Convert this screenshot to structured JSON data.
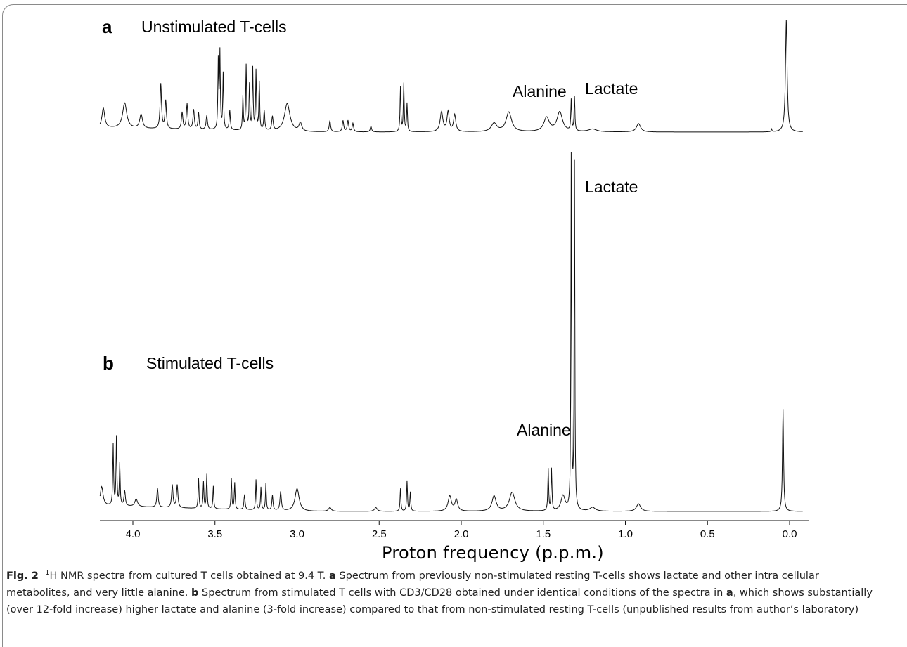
{
  "chart_data": [
    {
      "type": "line",
      "panel": "a",
      "title": "Unstimulated T-cells",
      "xlabel": "Proton frequency (p.p.m.)",
      "xlim": [
        4.2,
        -0.08
      ],
      "x_reversed": true,
      "y_units": "relative intensity (arbitrary)",
      "annotations": [
        {
          "text": "Alanine",
          "x": 1.47
        },
        {
          "text": "Lactate",
          "x": 1.33
        }
      ],
      "peaks": [
        [
          4.18,
          0.07,
          0.01
        ],
        [
          4.05,
          0.09,
          0.015
        ],
        [
          3.95,
          0.05,
          0.01
        ],
        [
          3.83,
          0.16,
          0.005
        ],
        [
          3.8,
          0.1,
          0.005
        ],
        [
          3.7,
          0.06,
          0.005
        ],
        [
          3.67,
          0.09,
          0.005
        ],
        [
          3.63,
          0.07,
          0.005
        ],
        [
          3.6,
          0.06,
          0.004
        ],
        [
          3.55,
          0.05,
          0.005
        ],
        [
          3.48,
          0.24,
          0.003
        ],
        [
          3.47,
          0.27,
          0.003
        ],
        [
          3.45,
          0.2,
          0.003
        ],
        [
          3.41,
          0.07,
          0.004
        ],
        [
          3.33,
          0.12,
          0.003
        ],
        [
          3.31,
          0.23,
          0.003
        ],
        [
          3.29,
          0.16,
          0.003
        ],
        [
          3.27,
          0.22,
          0.003
        ],
        [
          3.25,
          0.21,
          0.003
        ],
        [
          3.23,
          0.17,
          0.003
        ],
        [
          3.2,
          0.07,
          0.004
        ],
        [
          3.15,
          0.05,
          0.005
        ],
        [
          3.06,
          0.1,
          0.02
        ],
        [
          2.98,
          0.03,
          0.01
        ],
        [
          2.8,
          0.04,
          0.005
        ],
        [
          2.72,
          0.04,
          0.005
        ],
        [
          2.69,
          0.04,
          0.005
        ],
        [
          2.66,
          0.03,
          0.005
        ],
        [
          2.55,
          0.02,
          0.005
        ],
        [
          2.37,
          0.16,
          0.003
        ],
        [
          2.35,
          0.17,
          0.003
        ],
        [
          2.33,
          0.1,
          0.003
        ],
        [
          2.12,
          0.07,
          0.01
        ],
        [
          2.08,
          0.07,
          0.008
        ],
        [
          2.04,
          0.06,
          0.008
        ],
        [
          1.8,
          0.03,
          0.02
        ],
        [
          1.71,
          0.07,
          0.02
        ],
        [
          1.48,
          0.05,
          0.02
        ],
        [
          1.4,
          0.07,
          0.02
        ],
        [
          1.33,
          0.11,
          0.003
        ],
        [
          1.31,
          0.12,
          0.003
        ],
        [
          1.2,
          0.01,
          0.03
        ],
        [
          0.92,
          0.03,
          0.015
        ],
        [
          0.11,
          0.01,
          0.003
        ],
        [
          0.02,
          0.4,
          0.006
        ]
      ]
    },
    {
      "type": "line",
      "panel": "b",
      "title": "Stimulated T-cells",
      "xlabel": "Proton frequency (p.p.m.)",
      "xlim": [
        4.2,
        -0.08
      ],
      "x_reversed": true,
      "y_units": "relative intensity (arbitrary)",
      "annotations": [
        {
          "text": "Alanine",
          "x": 1.47
        },
        {
          "text": "Lactate",
          "x": 1.33
        }
      ],
      "peaks": [
        [
          4.19,
          0.05,
          0.01
        ],
        [
          4.12,
          0.16,
          0.003
        ],
        [
          4.1,
          0.18,
          0.003
        ],
        [
          4.08,
          0.11,
          0.003
        ],
        [
          4.05,
          0.04,
          0.005
        ],
        [
          3.98,
          0.02,
          0.01
        ],
        [
          3.85,
          0.05,
          0.005
        ],
        [
          3.76,
          0.06,
          0.005
        ],
        [
          3.73,
          0.06,
          0.005
        ],
        [
          3.6,
          0.08,
          0.003
        ],
        [
          3.57,
          0.07,
          0.003
        ],
        [
          3.55,
          0.09,
          0.003
        ],
        [
          3.51,
          0.06,
          0.003
        ],
        [
          3.4,
          0.08,
          0.003
        ],
        [
          3.38,
          0.07,
          0.003
        ],
        [
          3.32,
          0.04,
          0.004
        ],
        [
          3.25,
          0.08,
          0.003
        ],
        [
          3.22,
          0.06,
          0.003
        ],
        [
          3.19,
          0.07,
          0.003
        ],
        [
          3.15,
          0.04,
          0.004
        ],
        [
          3.1,
          0.05,
          0.005
        ],
        [
          3.0,
          0.06,
          0.015
        ],
        [
          2.8,
          0.01,
          0.01
        ],
        [
          2.52,
          0.01,
          0.01
        ],
        [
          2.37,
          0.06,
          0.003
        ],
        [
          2.33,
          0.08,
          0.003
        ],
        [
          2.31,
          0.05,
          0.003
        ],
        [
          2.07,
          0.04,
          0.012
        ],
        [
          2.03,
          0.03,
          0.01
        ],
        [
          1.8,
          0.04,
          0.015
        ],
        [
          1.69,
          0.05,
          0.02
        ],
        [
          1.47,
          0.11,
          0.003
        ],
        [
          1.45,
          0.11,
          0.003
        ],
        [
          1.38,
          0.04,
          0.015
        ],
        [
          1.33,
          0.93,
          0.0025
        ],
        [
          1.31,
          0.91,
          0.0025
        ],
        [
          1.2,
          0.01,
          0.02
        ],
        [
          0.92,
          0.02,
          0.015
        ],
        [
          0.04,
          0.27,
          0.004
        ]
      ]
    }
  ],
  "x_axis": {
    "ticks": [
      4.0,
      3.5,
      3.0,
      2.5,
      2.0,
      1.5,
      1.0,
      0.5,
      0.0
    ],
    "tick_labels": [
      "4.0",
      "3.5",
      "3.0",
      "2.5",
      "2.0",
      "1.5",
      "1.0",
      "0.5",
      "0.0"
    ],
    "title": "Proton frequency (p.p.m.)"
  },
  "panel_a": {
    "letter": "a",
    "title": "Unstimulated T-cells",
    "alanine_label": "Alanine",
    "lactate_label": "Lactate"
  },
  "panel_b": {
    "letter": "b",
    "title": "Stimulated T-cells",
    "alanine_label": "Alanine",
    "lactate_label": "Lactate"
  },
  "caption": {
    "fig_label": "Fig. 2",
    "superscript": "1",
    "intro": "H NMR spectra from cultured T cells obtained at 9.4 T. ",
    "a_letter": "a",
    "a_text": " Spectrum from previously non-stimulated resting T-cells shows lactate and other intra cellular metabolites, and very little alanine. ",
    "b_letter": "b",
    "b_text": " Spectrum from stimulated T cells with CD3/CD28 obtained under identical conditions of the spectra in ",
    "a_ref": "a",
    "tail_text": ", which shows substantially (over 12-fold increase) higher lactate and alanine (3-fold increase) compared to that from non-stimulated resting T-cells (unpublished results from author’s laboratory)"
  }
}
